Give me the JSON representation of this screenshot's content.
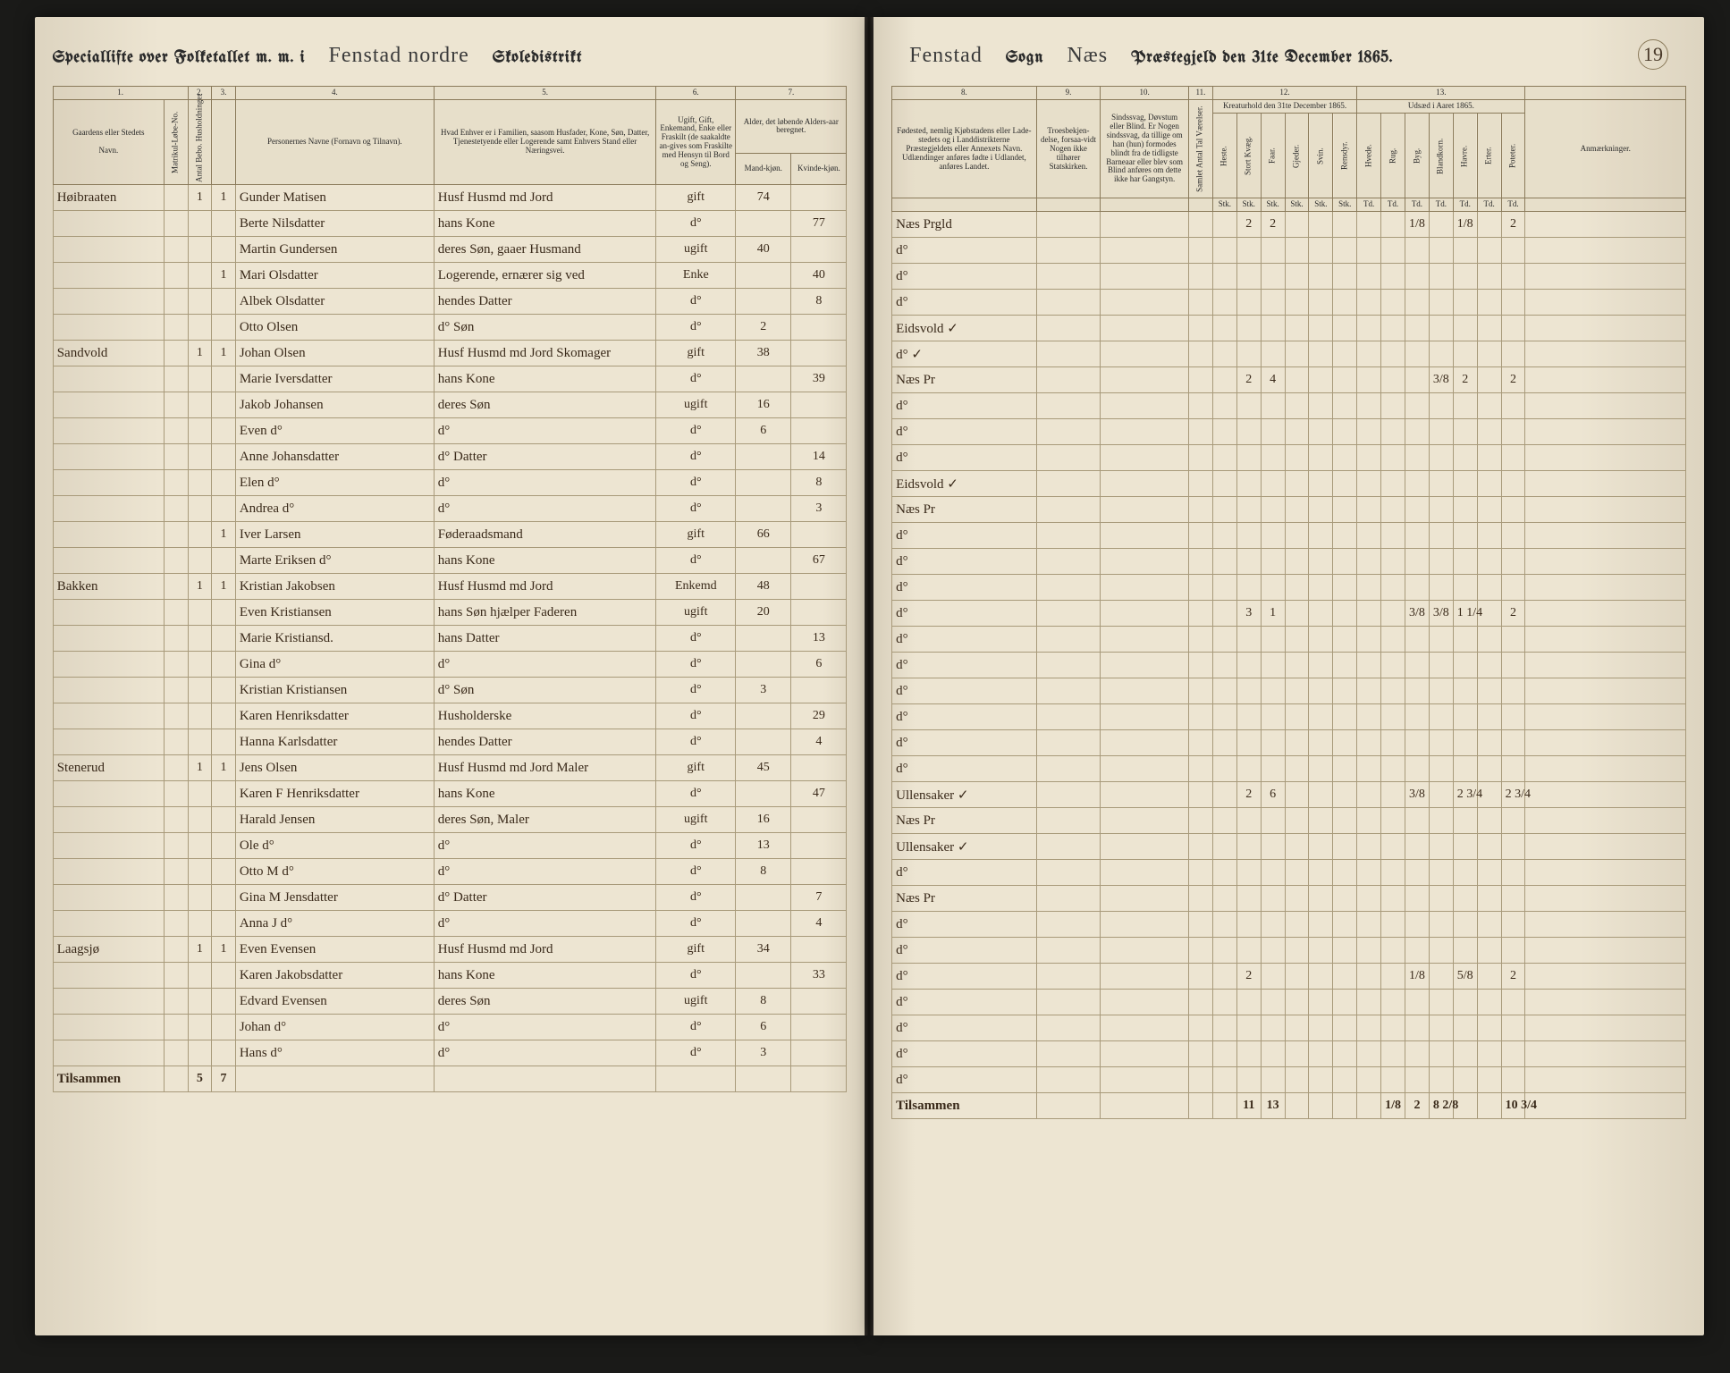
{
  "meta": {
    "page_number": "19",
    "title_left_prefix": "Speciallifte over Folketallet m. m. i",
    "district": "Fenstad nordre",
    "title_left_suffix": "Skoledistrikt",
    "sogn": "Fenstad",
    "sogn_label": "Sogn",
    "prgd": "Næs",
    "title_right_suffix": "Præstegjeld den 31te December 1865."
  },
  "columns_left": {
    "c1": "1.",
    "c2": "2.",
    "c3": "3.",
    "c4": "4.",
    "c5": "5.",
    "c6": "6.",
    "c7": "7.",
    "h1": "Gaardens eller Stedets",
    "h1b": "Navn.",
    "h2": "Matrikul-Løbe-No.",
    "h3": "Antal Bebo. Husholdninger",
    "h4": "Personernes Navne (Fornavn og Tilnavn).",
    "h5": "Hvad Enhver er i Familien, saasom Husfader, Kone, Søn, Datter, Tjenestetyende eller Logerende samt Enhvers Stand eller Næringsvei.",
    "h6": "Ugift, Gift, Enkemand, Enke eller Fraskilt (de saakaldte an-gives som Fraskilte med Hensyn til Bord og Seng).",
    "h7": "Alder, det løbende Alders-aar beregnet.",
    "h7a": "Mand-kjøn.",
    "h7b": "Kvinde-kjøn."
  },
  "columns_right": {
    "c8": "8.",
    "c9": "9.",
    "c10": "10.",
    "c11": "11.",
    "c12": "12.",
    "c13": "13.",
    "h8": "Fødested, nemlig Kjøbstadens eller Lade-stedets og i Landdistrikterne Præstegjeldets eller Annexets Navn. Udlændinger anføres fødte i Udlandet, anføres Landet.",
    "h9": "Troesbekjen-delse, forsaa-vidt Nogen ikke tilhører Statskirken.",
    "h10": "Sindssvag, Døvstum eller Blind. Er Nogen sindssvag, da tillige om han (hun) formodes blindt fra de tidligste Barneaar eller blev som Blind anføres om dette ikke har Gangstyn.",
    "h11": "Samlet Antal Tal Værelser.",
    "h12": "Kreaturhold den 31te December 1865.",
    "h12a": "Heste.",
    "h12b": "Stort Kvæg.",
    "h12c": "Faar.",
    "h12d": "Gjeder.",
    "h12e": "Svin.",
    "h12f": "Rensdyr.",
    "h13": "Udsæd i Aaret 1865.",
    "h13a": "Hvede.",
    "h13b": "Rug.",
    "h13c": "Byg.",
    "h13d": "Blandkorn.",
    "h13e": "Havre.",
    "h13f": "Erter.",
    "h13g": "Poteter.",
    "hAnm": "Anmærkninger."
  },
  "rows": [
    {
      "farm": "Høibraaten",
      "m": "",
      "h": "1",
      "p": "1",
      "name": "Gunder Matisen",
      "role": "Husf Husmd md Jord",
      "stat": "gift",
      "ma": "74",
      "fa": "",
      "birth": "Næs Prgld",
      "hs": "",
      "kv": "2",
      "fa2": "2",
      "rg": "",
      "bg": "1/8",
      "hv": "",
      "er": "1/8",
      "pt": "2"
    },
    {
      "farm": "",
      "m": "",
      "h": "",
      "p": "",
      "name": "Berte Nilsdatter",
      "role": "hans Kone",
      "stat": "d°",
      "ma": "",
      "fa": "77",
      "birth": "d°",
      "hs": "",
      "kv": "",
      "fa2": "",
      "rg": "",
      "bg": "",
      "hv": "",
      "er": "",
      "pt": ""
    },
    {
      "farm": "",
      "m": "",
      "h": "",
      "p": "",
      "name": "Martin Gundersen",
      "role": "deres Søn, gaaer Husmand",
      "stat": "ugift",
      "ma": "40",
      "fa": "",
      "birth": "d°",
      "hs": "",
      "kv": "",
      "fa2": "",
      "rg": "",
      "bg": "",
      "hv": "",
      "er": "",
      "pt": ""
    },
    {
      "farm": "",
      "m": "",
      "h": "",
      "p": "1",
      "name": "Mari Olsdatter",
      "role": "Logerende, ernærer sig ved",
      "stat": "Enke",
      "ma": "",
      "fa": "40",
      "birth": "d°",
      "hs": "",
      "kv": "",
      "fa2": "",
      "rg": "",
      "bg": "",
      "hv": "",
      "er": "",
      "pt": ""
    },
    {
      "farm": "",
      "m": "",
      "h": "",
      "p": "",
      "name": "Albek Olsdatter",
      "role": "hendes Datter",
      "stat": "d°",
      "ma": "",
      "fa": "8",
      "birth": "Eidsvold ✓",
      "hs": "",
      "kv": "",
      "fa2": "",
      "rg": "",
      "bg": "",
      "hv": "",
      "er": "",
      "pt": ""
    },
    {
      "farm": "",
      "m": "",
      "h": "",
      "p": "",
      "name": "Otto Olsen",
      "role": "d° Søn",
      "stat": "d°",
      "ma": "2",
      "fa": "",
      "birth": "d° ✓",
      "hs": "",
      "kv": "",
      "fa2": "",
      "rg": "",
      "bg": "",
      "hv": "",
      "er": "",
      "pt": ""
    },
    {
      "farm": "Sandvold",
      "m": "",
      "h": "1",
      "p": "1",
      "name": "Johan Olsen",
      "role": "Husf Husmd md Jord Skomager",
      "stat": "gift",
      "ma": "38",
      "fa": "",
      "birth": "Næs Pr",
      "hs": "",
      "kv": "2",
      "fa2": "4",
      "rg": "",
      "bg": "",
      "hv": "3/8",
      "er": "2",
      "pt": "2"
    },
    {
      "farm": "",
      "m": "",
      "h": "",
      "p": "",
      "name": "Marie Iversdatter",
      "role": "hans Kone",
      "stat": "d°",
      "ma": "",
      "fa": "39",
      "birth": "d°",
      "hs": "",
      "kv": "",
      "fa2": "",
      "rg": "",
      "bg": "",
      "hv": "",
      "er": "",
      "pt": ""
    },
    {
      "farm": "",
      "m": "",
      "h": "",
      "p": "",
      "name": "Jakob Johansen",
      "role": "deres Søn",
      "stat": "ugift",
      "ma": "16",
      "fa": "",
      "birth": "d°",
      "hs": "",
      "kv": "",
      "fa2": "",
      "rg": "",
      "bg": "",
      "hv": "",
      "er": "",
      "pt": ""
    },
    {
      "farm": "",
      "m": "",
      "h": "",
      "p": "",
      "name": "Even d°",
      "role": "d°",
      "stat": "d°",
      "ma": "6",
      "fa": "",
      "birth": "d°",
      "hs": "",
      "kv": "",
      "fa2": "",
      "rg": "",
      "bg": "",
      "hv": "",
      "er": "",
      "pt": ""
    },
    {
      "farm": "",
      "m": "",
      "h": "",
      "p": "",
      "name": "Anne Johansdatter",
      "role": "d° Datter",
      "stat": "d°",
      "ma": "",
      "fa": "14",
      "birth": "Eidsvold ✓",
      "hs": "",
      "kv": "",
      "fa2": "",
      "rg": "",
      "bg": "",
      "hv": "",
      "er": "",
      "pt": ""
    },
    {
      "farm": "",
      "m": "",
      "h": "",
      "p": "",
      "name": "Elen d°",
      "role": "d°",
      "stat": "d°",
      "ma": "",
      "fa": "8",
      "birth": "Næs Pr",
      "hs": "",
      "kv": "",
      "fa2": "",
      "rg": "",
      "bg": "",
      "hv": "",
      "er": "",
      "pt": ""
    },
    {
      "farm": "",
      "m": "",
      "h": "",
      "p": "",
      "name": "Andrea d°",
      "role": "d°",
      "stat": "d°",
      "ma": "",
      "fa": "3",
      "birth": "d°",
      "hs": "",
      "kv": "",
      "fa2": "",
      "rg": "",
      "bg": "",
      "hv": "",
      "er": "",
      "pt": ""
    },
    {
      "farm": "",
      "m": "",
      "h": "",
      "p": "1",
      "name": "Iver Larsen",
      "role": "Føderaadsmand",
      "stat": "gift",
      "ma": "66",
      "fa": "",
      "birth": "d°",
      "hs": "",
      "kv": "",
      "fa2": "",
      "rg": "",
      "bg": "",
      "hv": "",
      "er": "",
      "pt": ""
    },
    {
      "farm": "",
      "m": "",
      "h": "",
      "p": "",
      "name": "Marte Eriksen d°",
      "role": "hans Kone",
      "stat": "d°",
      "ma": "",
      "fa": "67",
      "birth": "d°",
      "hs": "",
      "kv": "",
      "fa2": "",
      "rg": "",
      "bg": "",
      "hv": "",
      "er": "",
      "pt": ""
    },
    {
      "farm": "Bakken",
      "m": "",
      "h": "1",
      "p": "1",
      "name": "Kristian Jakobsen",
      "role": "Husf Husmd md Jord",
      "stat": "Enkemd",
      "ma": "48",
      "fa": "",
      "birth": "d°",
      "hs": "",
      "kv": "3",
      "fa2": "1",
      "rg": "",
      "bg": "3/8",
      "hv": "3/8",
      "er": "1 1/4",
      "pt": "2"
    },
    {
      "farm": "",
      "m": "",
      "h": "",
      "p": "",
      "name": "Even Kristiansen",
      "role": "hans Søn hjælper Faderen",
      "stat": "ugift",
      "ma": "20",
      "fa": "",
      "birth": "d°",
      "hs": "",
      "kv": "",
      "fa2": "",
      "rg": "",
      "bg": "",
      "hv": "",
      "er": "",
      "pt": ""
    },
    {
      "farm": "",
      "m": "",
      "h": "",
      "p": "",
      "name": "Marie Kristiansd.",
      "role": "hans Datter",
      "stat": "d°",
      "ma": "",
      "fa": "13",
      "birth": "d°",
      "hs": "",
      "kv": "",
      "fa2": "",
      "rg": "",
      "bg": "",
      "hv": "",
      "er": "",
      "pt": ""
    },
    {
      "farm": "",
      "m": "",
      "h": "",
      "p": "",
      "name": "Gina d°",
      "role": "d°",
      "stat": "d°",
      "ma": "",
      "fa": "6",
      "birth": "d°",
      "hs": "",
      "kv": "",
      "fa2": "",
      "rg": "",
      "bg": "",
      "hv": "",
      "er": "",
      "pt": ""
    },
    {
      "farm": "",
      "m": "",
      "h": "",
      "p": "",
      "name": "Kristian Kristiansen",
      "role": "d° Søn",
      "stat": "d°",
      "ma": "3",
      "fa": "",
      "birth": "d°",
      "hs": "",
      "kv": "",
      "fa2": "",
      "rg": "",
      "bg": "",
      "hv": "",
      "er": "",
      "pt": ""
    },
    {
      "farm": "",
      "m": "",
      "h": "",
      "p": "",
      "name": "Karen Henriksdatter",
      "role": "Husholderske",
      "stat": "d°",
      "ma": "",
      "fa": "29",
      "birth": "d°",
      "hs": "",
      "kv": "",
      "fa2": "",
      "rg": "",
      "bg": "",
      "hv": "",
      "er": "",
      "pt": ""
    },
    {
      "farm": "",
      "m": "",
      "h": "",
      "p": "",
      "name": "Hanna Karlsdatter",
      "role": "hendes Datter",
      "stat": "d°",
      "ma": "",
      "fa": "4",
      "birth": "d°",
      "hs": "",
      "kv": "",
      "fa2": "",
      "rg": "",
      "bg": "",
      "hv": "",
      "er": "",
      "pt": ""
    },
    {
      "farm": "Stenerud",
      "m": "",
      "h": "1",
      "p": "1",
      "name": "Jens Olsen",
      "role": "Husf Husmd md Jord Maler",
      "stat": "gift",
      "ma": "45",
      "fa": "",
      "birth": "Ullensaker ✓",
      "hs": "",
      "kv": "2",
      "fa2": "6",
      "rg": "",
      "bg": "3/8",
      "hv": "",
      "er": "2 3/4",
      "pt": "2 3/4"
    },
    {
      "farm": "",
      "m": "",
      "h": "",
      "p": "",
      "name": "Karen F Henriksdatter",
      "role": "hans Kone",
      "stat": "d°",
      "ma": "",
      "fa": "47",
      "birth": "Næs Pr",
      "hs": "",
      "kv": "",
      "fa2": "",
      "rg": "",
      "bg": "",
      "hv": "",
      "er": "",
      "pt": ""
    },
    {
      "farm": "",
      "m": "",
      "h": "",
      "p": "",
      "name": "Harald Jensen",
      "role": "deres Søn, Maler",
      "stat": "ugift",
      "ma": "16",
      "fa": "",
      "birth": "Ullensaker ✓",
      "hs": "",
      "kv": "",
      "fa2": "",
      "rg": "",
      "bg": "",
      "hv": "",
      "er": "",
      "pt": ""
    },
    {
      "farm": "",
      "m": "",
      "h": "",
      "p": "",
      "name": "Ole d°",
      "role": "d°",
      "stat": "d°",
      "ma": "13",
      "fa": "",
      "birth": "d°",
      "hs": "",
      "kv": "",
      "fa2": "",
      "rg": "",
      "bg": "",
      "hv": "",
      "er": "",
      "pt": ""
    },
    {
      "farm": "",
      "m": "",
      "h": "",
      "p": "",
      "name": "Otto M d°",
      "role": "d°",
      "stat": "d°",
      "ma": "8",
      "fa": "",
      "birth": "Næs Pr",
      "hs": "",
      "kv": "",
      "fa2": "",
      "rg": "",
      "bg": "",
      "hv": "",
      "er": "",
      "pt": ""
    },
    {
      "farm": "",
      "m": "",
      "h": "",
      "p": "",
      "name": "Gina M Jensdatter",
      "role": "d° Datter",
      "stat": "d°",
      "ma": "",
      "fa": "7",
      "birth": "d°",
      "hs": "",
      "kv": "",
      "fa2": "",
      "rg": "",
      "bg": "",
      "hv": "",
      "er": "",
      "pt": ""
    },
    {
      "farm": "",
      "m": "",
      "h": "",
      "p": "",
      "name": "Anna J d°",
      "role": "d°",
      "stat": "d°",
      "ma": "",
      "fa": "4",
      "birth": "d°",
      "hs": "",
      "kv": "",
      "fa2": "",
      "rg": "",
      "bg": "",
      "hv": "",
      "er": "",
      "pt": ""
    },
    {
      "farm": "Laagsjø",
      "m": "",
      "h": "1",
      "p": "1",
      "name": "Even Evensen",
      "role": "Husf Husmd md Jord",
      "stat": "gift",
      "ma": "34",
      "fa": "",
      "birth": "d°",
      "hs": "",
      "kv": "2",
      "fa2": "",
      "rg": "",
      "bg": "1/8",
      "hv": "",
      "er": "5/8",
      "pt": "2"
    },
    {
      "farm": "",
      "m": "",
      "h": "",
      "p": "",
      "name": "Karen Jakobsdatter",
      "role": "hans Kone",
      "stat": "d°",
      "ma": "",
      "fa": "33",
      "birth": "d°",
      "hs": "",
      "kv": "",
      "fa2": "",
      "rg": "",
      "bg": "",
      "hv": "",
      "er": "",
      "pt": ""
    },
    {
      "farm": "",
      "m": "",
      "h": "",
      "p": "",
      "name": "Edvard Evensen",
      "role": "deres Søn",
      "stat": "ugift",
      "ma": "8",
      "fa": "",
      "birth": "d°",
      "hs": "",
      "kv": "",
      "fa2": "",
      "rg": "",
      "bg": "",
      "hv": "",
      "er": "",
      "pt": ""
    },
    {
      "farm": "",
      "m": "",
      "h": "",
      "p": "",
      "name": "Johan d°",
      "role": "d°",
      "stat": "d°",
      "ma": "6",
      "fa": "",
      "birth": "d°",
      "hs": "",
      "kv": "",
      "fa2": "",
      "rg": "",
      "bg": "",
      "hv": "",
      "er": "",
      "pt": ""
    },
    {
      "farm": "",
      "m": "",
      "h": "",
      "p": "",
      "name": "Hans d°",
      "role": "d°",
      "stat": "d°",
      "ma": "3",
      "fa": "",
      "birth": "d°",
      "hs": "",
      "kv": "",
      "fa2": "",
      "rg": "",
      "bg": "",
      "hv": "",
      "er": "",
      "pt": ""
    }
  ],
  "footer": {
    "label": "Tilsammen",
    "m_sum": "5",
    "h_sum": "7",
    "hs": "",
    "kv": "11",
    "fa2": "13",
    "sh": "",
    "gj": "",
    "sv": "",
    "rd": "",
    "hv": "",
    "rg": "1/8",
    "bg": "2",
    "bl": "8 2/8",
    "er": "",
    "pt": "10 3/4"
  },
  "style": {
    "paper_bg": "#ede5d2",
    "rule_color": "#8a7a5a",
    "ink_color": "#3a2a1a",
    "print_color": "#2a2a2a"
  }
}
